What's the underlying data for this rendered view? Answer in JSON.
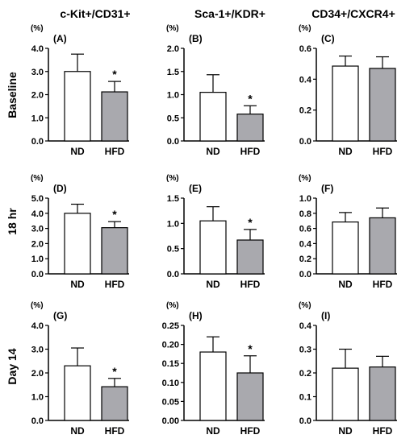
{
  "column_headers": [
    "c-Kit+/CD31+",
    "Sca-1+/KDR+",
    "CD34+/CXCR4+"
  ],
  "row_headers": [
    "Baseline",
    "18 hr",
    "Day 14"
  ],
  "colors": {
    "nd_fill": "#ffffff",
    "hfd_fill": "#a9a9ae",
    "stroke": "#000000"
  },
  "chart_data": [
    {
      "type": "bar",
      "panel": "(A)",
      "unit": "(%)",
      "categories": [
        "ND",
        "HFD"
      ],
      "values": [
        3.0,
        2.12
      ],
      "errors": [
        0.75,
        0.45
      ],
      "significance": [
        "",
        "*"
      ],
      "ylim": [
        0,
        4.0
      ],
      "yticks": [
        "0.0",
        "1.0",
        "2.0",
        "3.0",
        "4.0"
      ]
    },
    {
      "type": "bar",
      "panel": "(B)",
      "unit": "(%)",
      "categories": [
        "ND",
        "HFD"
      ],
      "values": [
        1.05,
        0.58
      ],
      "errors": [
        0.38,
        0.18
      ],
      "significance": [
        "",
        "*"
      ],
      "ylim": [
        0,
        2.0
      ],
      "yticks": [
        "0.0",
        "0.5",
        "1.0",
        "1.5",
        "2.0"
      ]
    },
    {
      "type": "bar",
      "panel": "(C)",
      "unit": "(%)",
      "categories": [
        "ND",
        "HFD"
      ],
      "values": [
        0.485,
        0.47
      ],
      "errors": [
        0.065,
        0.075
      ],
      "significance": [
        "",
        ""
      ],
      "ylim": [
        0,
        0.6
      ],
      "yticks": [
        "0.0",
        "0.2",
        "0.4",
        "0.6"
      ]
    },
    {
      "type": "bar",
      "panel": "(D)",
      "unit": "(%)",
      "categories": [
        "ND",
        "HFD"
      ],
      "values": [
        4.0,
        3.05
      ],
      "errors": [
        0.6,
        0.4
      ],
      "significance": [
        "",
        "*"
      ],
      "ylim": [
        0,
        5.0
      ],
      "yticks": [
        "0.0",
        "1.0",
        "2.0",
        "3.0",
        "4.0",
        "5.0"
      ]
    },
    {
      "type": "bar",
      "panel": "(E)",
      "unit": "(%)",
      "categories": [
        "ND",
        "HFD"
      ],
      "values": [
        1.05,
        0.67
      ],
      "errors": [
        0.28,
        0.21
      ],
      "significance": [
        "",
        "*"
      ],
      "ylim": [
        0,
        1.5
      ],
      "yticks": [
        "0.0",
        "0.5",
        "1.0",
        "1.5"
      ]
    },
    {
      "type": "bar",
      "panel": "(F)",
      "unit": "(%)",
      "categories": [
        "ND",
        "HFD"
      ],
      "values": [
        0.685,
        0.74
      ],
      "errors": [
        0.125,
        0.13
      ],
      "significance": [
        "",
        ""
      ],
      "ylim": [
        0,
        1.0
      ],
      "yticks": [
        "0.0",
        "0.2",
        "0.4",
        "0.6",
        "0.8",
        "1.0"
      ]
    },
    {
      "type": "bar",
      "panel": "(G)",
      "unit": "(%)",
      "categories": [
        "ND",
        "HFD"
      ],
      "values": [
        2.3,
        1.42
      ],
      "errors": [
        0.75,
        0.35
      ],
      "significance": [
        "",
        "*"
      ],
      "ylim": [
        0,
        4.0
      ],
      "yticks": [
        "0.0",
        "1.0",
        "2.0",
        "3.0",
        "4.0"
      ]
    },
    {
      "type": "bar",
      "panel": "(H)",
      "unit": "(%)",
      "categories": [
        "ND",
        "HFD"
      ],
      "values": [
        0.18,
        0.125
      ],
      "errors": [
        0.04,
        0.045
      ],
      "significance": [
        "",
        "*"
      ],
      "ylim": [
        0,
        0.25
      ],
      "yticks": [
        "0.00",
        "0.05",
        "0.10",
        "0.15",
        "0.20",
        "0.25"
      ]
    },
    {
      "type": "bar",
      "panel": "(I)",
      "unit": "(%)",
      "categories": [
        "ND",
        "HFD"
      ],
      "values": [
        0.22,
        0.225
      ],
      "errors": [
        0.08,
        0.045
      ],
      "significance": [
        "",
        ""
      ],
      "ylim": [
        0,
        0.4
      ],
      "yticks": [
        "0.0",
        "0.1",
        "0.2",
        "0.3",
        "0.4"
      ]
    }
  ]
}
